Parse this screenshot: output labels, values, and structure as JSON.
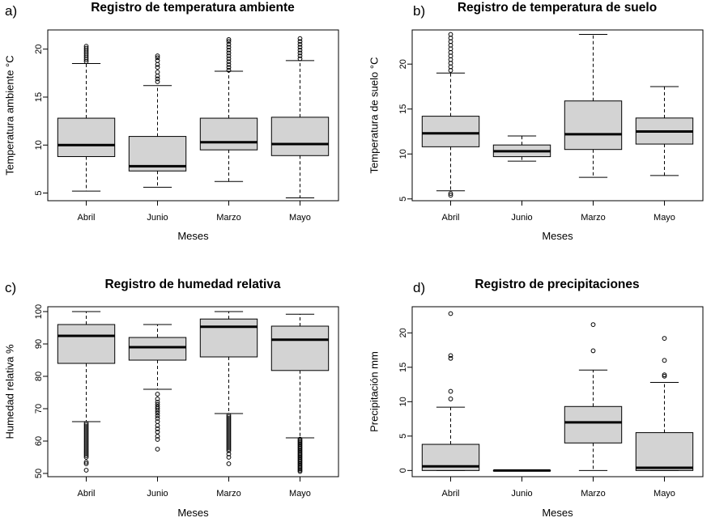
{
  "chart_data": [
    {
      "type": "boxplot",
      "panel_label": "a)",
      "title": "Registro de temperatura ambiente",
      "xlabel": "Meses",
      "ylabel": "Temperatura ambiente °C",
      "categories": [
        "Abril",
        "Junio",
        "Marzo",
        "Mayo"
      ],
      "ylim": [
        4.2,
        22.0
      ],
      "yticks": [
        5,
        10,
        15,
        20
      ],
      "boxes": [
        {
          "whisker_low": 5.2,
          "q1": 8.8,
          "median": 10.0,
          "q3": 12.8,
          "whisker_high": 18.5,
          "outliers": [
            18.7,
            18.9,
            19.1,
            19.3,
            19.5,
            19.7,
            19.9,
            20.1,
            20.3
          ]
        },
        {
          "whisker_low": 5.6,
          "q1": 7.3,
          "median": 7.8,
          "q3": 10.9,
          "whisker_high": 16.2,
          "outliers": [
            16.6,
            16.9,
            17.2,
            17.6,
            18.1,
            18.4,
            18.8,
            19.1,
            19.3
          ]
        },
        {
          "whisker_low": 6.2,
          "q1": 9.5,
          "median": 10.3,
          "q3": 12.8,
          "whisker_high": 17.7,
          "outliers": [
            17.8,
            18.1,
            18.4,
            18.7,
            19.0,
            19.3,
            19.6,
            19.9,
            20.2,
            20.5,
            20.8,
            21.0
          ]
        },
        {
          "whisker_low": 4.5,
          "q1": 8.9,
          "median": 10.1,
          "q3": 12.9,
          "whisker_high": 18.8,
          "outliers": [
            19.0,
            19.3,
            19.6,
            19.9,
            20.2,
            20.5,
            20.8,
            21.1
          ]
        }
      ]
    },
    {
      "type": "boxplot",
      "panel_label": "b)",
      "title": "Registro de temperatura de suelo",
      "xlabel": "Meses",
      "ylabel": "Temperatura de suelo °C",
      "categories": [
        "Abril",
        "Junio",
        "Marzo",
        "Mayo"
      ],
      "ylim": [
        4.8,
        23.8
      ],
      "yticks": [
        5,
        10,
        15,
        20
      ],
      "boxes": [
        {
          "whisker_low": 5.9,
          "q1": 10.8,
          "median": 12.3,
          "q3": 14.2,
          "whisker_high": 19.0,
          "outliers": [
            19.3,
            19.7,
            20.1,
            20.5,
            20.9,
            21.3,
            21.7,
            22.1,
            22.5,
            22.9,
            23.3,
            5.6,
            5.4
          ]
        },
        {
          "whisker_low": 9.2,
          "q1": 9.7,
          "median": 10.3,
          "q3": 11.0,
          "whisker_high": 12.0,
          "outliers": []
        },
        {
          "whisker_low": 7.4,
          "q1": 10.5,
          "median": 12.2,
          "q3": 15.9,
          "whisker_high": 23.3,
          "outliers": []
        },
        {
          "whisker_low": 7.6,
          "q1": 11.1,
          "median": 12.5,
          "q3": 14.0,
          "whisker_high": 17.5,
          "outliers": []
        }
      ]
    },
    {
      "type": "boxplot",
      "panel_label": "c)",
      "title": "Registro de humedad relativa",
      "xlabel": "Meses",
      "ylabel": "Humedad relativa %",
      "categories": [
        "Abril",
        "Junio",
        "Marzo",
        "Mayo"
      ],
      "ylim": [
        49.0,
        101.5
      ],
      "yticks": [
        50,
        60,
        70,
        80,
        90,
        100
      ],
      "boxes": [
        {
          "whisker_low": 66.0,
          "q1": 84.0,
          "median": 92.5,
          "q3": 96.0,
          "whisker_high": 100.0,
          "outliers": [
            65.5,
            65.0,
            64.5,
            64.0,
            63.5,
            63.0,
            62.5,
            62.0,
            61.5,
            61.0,
            60.5,
            60.0,
            59.5,
            59.0,
            58.5,
            58.0,
            57.5,
            57.0,
            56.5,
            56.0,
            55.5,
            55.0,
            53.5,
            53.0,
            51.0
          ]
        },
        {
          "whisker_low": 76.0,
          "q1": 85.0,
          "median": 89.0,
          "q3": 92.0,
          "whisker_high": 96.0,
          "outliers": [
            74.5,
            73.0,
            72.0,
            71.3,
            70.6,
            70.0,
            69.3,
            68.6,
            67.8,
            67.0,
            66.0,
            64.8,
            63.8,
            62.8,
            61.5,
            60.5,
            57.5
          ]
        },
        {
          "whisker_low": 68.5,
          "q1": 86.0,
          "median": 95.3,
          "q3": 97.7,
          "whisker_high": 100.0,
          "outliers": [
            68.0,
            67.5,
            67.0,
            66.5,
            66.0,
            65.5,
            65.0,
            64.5,
            64.0,
            63.5,
            63.0,
            62.5,
            62.0,
            61.5,
            61.0,
            60.5,
            60.0,
            59.5,
            59.0,
            58.5,
            58.0,
            57.5,
            57.0,
            56.0,
            55.0,
            53.0
          ]
        },
        {
          "whisker_low": 61.0,
          "q1": 81.8,
          "median": 91.3,
          "q3": 95.5,
          "whisker_high": 99.2,
          "outliers": [
            60.6,
            60.2,
            59.8,
            59.4,
            59.0,
            58.6,
            58.2,
            57.8,
            57.4,
            57.0,
            56.6,
            56.2,
            55.8,
            55.4,
            55.0,
            54.6,
            54.2,
            53.8,
            53.4,
            53.0,
            52.6,
            52.2,
            51.8,
            51.4,
            51.0,
            50.6
          ]
        }
      ]
    },
    {
      "type": "boxplot",
      "panel_label": "d)",
      "title": "Registro de precipitaciones",
      "xlabel": "Meses",
      "ylabel": "Precipitación mm",
      "categories": [
        "Abril",
        "Junio",
        "Marzo",
        "Mayo"
      ],
      "ylim": [
        -0.9,
        23.8
      ],
      "yticks": [
        0,
        5,
        10,
        15,
        20
      ],
      "boxes": [
        {
          "whisker_low": 0.0,
          "q1": 0.0,
          "median": 0.6,
          "q3": 3.8,
          "whisker_high": 9.2,
          "outliers": [
            10.4,
            11.5,
            16.3,
            16.7,
            22.8
          ]
        },
        {
          "whisker_low": 0.0,
          "q1": 0.0,
          "median": 0.0,
          "q3": 0.0,
          "whisker_high": 0.0,
          "outliers": []
        },
        {
          "whisker_low": 0.0,
          "q1": 4.0,
          "median": 7.0,
          "q3": 9.3,
          "whisker_high": 14.6,
          "outliers": [
            17.4,
            21.2
          ]
        },
        {
          "whisker_low": 0.0,
          "q1": 0.0,
          "median": 0.4,
          "q3": 5.5,
          "whisker_high": 12.8,
          "outliers": [
            13.7,
            13.9,
            16.0,
            19.2
          ]
        }
      ]
    }
  ]
}
